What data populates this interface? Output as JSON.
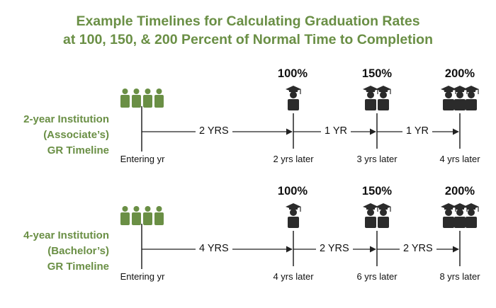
{
  "title": {
    "line1": "Example Timelines for Calculating Graduation Rates",
    "line2": "at 100, 150, & 200 Percent of Normal Time to Completion"
  },
  "colors": {
    "accent": "#6a8f45",
    "figure_dark": "#2b2b2b",
    "text": "#111111"
  },
  "timelines": [
    {
      "label_lines": [
        "2-year Institution",
        "(Associate’s)",
        "GR Timeline"
      ],
      "start_label": "Entering yr",
      "milestones": [
        {
          "pct": "100%",
          "gap_label": "2 YRS",
          "bottom_label": "2 yrs later"
        },
        {
          "pct": "150%",
          "gap_label": "1 YR",
          "bottom_label": "3 yrs later"
        },
        {
          "pct": "200%",
          "gap_label": "1 YR",
          "bottom_label": "4 yrs later"
        }
      ]
    },
    {
      "label_lines": [
        "4-year Institution",
        "(Bachelor’s)",
        "GR Timeline"
      ],
      "start_label": "Entering yr",
      "milestones": [
        {
          "pct": "100%",
          "gap_label": "4 YRS",
          "bottom_label": "4 yrs later"
        },
        {
          "pct": "150%",
          "gap_label": "2 YRS",
          "bottom_label": "6 yrs later"
        },
        {
          "pct": "200%",
          "gap_label": "2 YRS",
          "bottom_label": "8 yrs later"
        }
      ]
    }
  ]
}
